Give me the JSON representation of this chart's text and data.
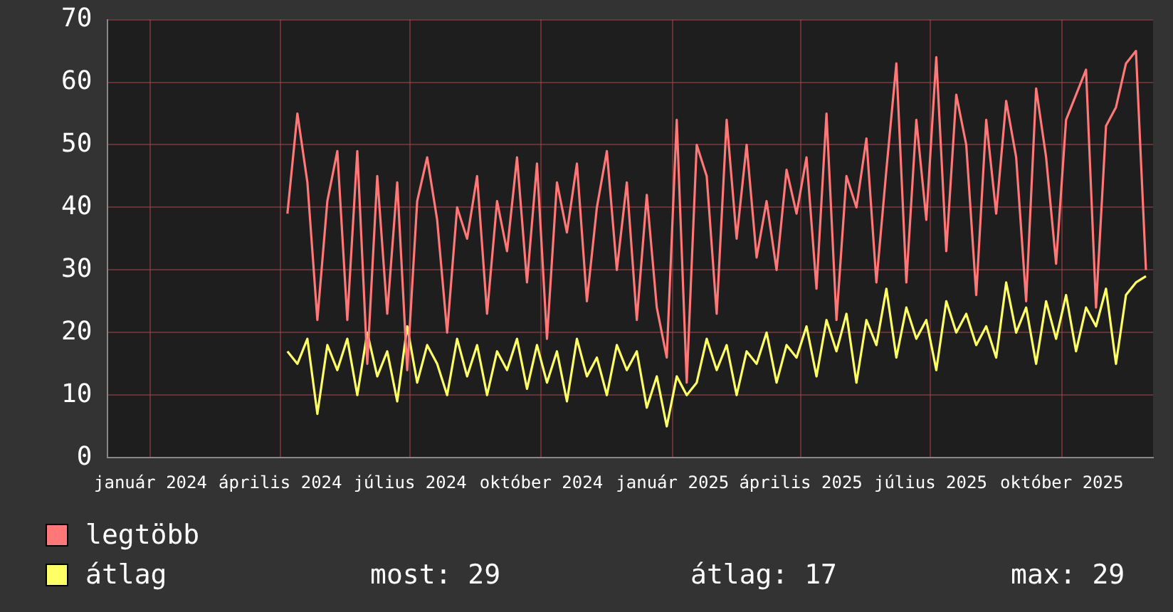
{
  "chart_data": {
    "type": "line",
    "x": [
      "2024-04-06",
      "2024-04-13",
      "2024-04-20",
      "2024-04-27",
      "2024-05-04",
      "2024-05-11",
      "2024-05-18",
      "2024-05-25",
      "2024-06-01",
      "2024-06-08",
      "2024-06-15",
      "2024-06-22",
      "2024-06-29",
      "2024-07-06",
      "2024-07-13",
      "2024-07-20",
      "2024-07-27",
      "2024-08-03",
      "2024-08-10",
      "2024-08-17",
      "2024-08-24",
      "2024-08-31",
      "2024-09-07",
      "2024-09-14",
      "2024-09-21",
      "2024-09-28",
      "2024-10-05",
      "2024-10-12",
      "2024-10-19",
      "2024-10-26",
      "2024-11-02",
      "2024-11-09",
      "2024-11-16",
      "2024-11-23",
      "2024-11-30",
      "2024-12-07",
      "2024-12-14",
      "2024-12-21",
      "2024-12-28",
      "2025-01-04",
      "2025-01-11",
      "2025-01-18",
      "2025-01-25",
      "2025-02-01",
      "2025-02-08",
      "2025-02-15",
      "2025-02-22",
      "2025-03-01",
      "2025-03-08",
      "2025-03-15",
      "2025-03-22",
      "2025-03-29",
      "2025-04-05",
      "2025-04-12",
      "2025-04-19",
      "2025-04-26",
      "2025-05-03",
      "2025-05-10",
      "2025-05-17",
      "2025-05-24",
      "2025-05-31",
      "2025-06-07",
      "2025-06-14",
      "2025-06-21",
      "2025-06-28",
      "2025-07-05",
      "2025-07-12",
      "2025-07-19",
      "2025-07-26",
      "2025-08-02",
      "2025-08-09",
      "2025-08-16",
      "2025-08-23",
      "2025-08-30",
      "2025-09-06",
      "2025-09-13",
      "2025-09-20",
      "2025-09-27",
      "2025-10-04",
      "2025-10-11",
      "2025-10-18",
      "2025-10-25",
      "2025-11-01",
      "2025-11-08",
      "2025-11-15",
      "2025-11-22",
      "2025-11-29"
    ],
    "series": [
      {
        "name": "legtöbb",
        "color": "#ff7777",
        "values": [
          39,
          55,
          44,
          22,
          41,
          49,
          22,
          49,
          15,
          45,
          23,
          44,
          14,
          41,
          48,
          38,
          20,
          40,
          35,
          45,
          23,
          41,
          33,
          48,
          28,
          47,
          19,
          44,
          36,
          47,
          25,
          40,
          49,
          30,
          44,
          22,
          42,
          24,
          16,
          54,
          12,
          50,
          45,
          23,
          54,
          35,
          50,
          32,
          41,
          30,
          46,
          39,
          48,
          27,
          55,
          22,
          45,
          40,
          51,
          28,
          46,
          63,
          28,
          54,
          38,
          64,
          33,
          58,
          50,
          26,
          54,
          39,
          57,
          48,
          25,
          59,
          48,
          31,
          54,
          58,
          62,
          24,
          53,
          56,
          63,
          65,
          30
        ]
      },
      {
        "name": "átlag",
        "color": "#ffff66",
        "values": [
          17,
          15,
          19,
          7,
          18,
          14,
          19,
          10,
          20,
          13,
          17,
          9,
          21,
          12,
          18,
          15,
          10,
          19,
          13,
          18,
          10,
          17,
          14,
          19,
          11,
          18,
          12,
          17,
          9,
          19,
          13,
          16,
          10,
          18,
          14,
          17,
          8,
          13,
          5,
          13,
          10,
          12,
          19,
          14,
          18,
          10,
          17,
          15,
          20,
          12,
          18,
          16,
          21,
          13,
          22,
          17,
          23,
          12,
          22,
          18,
          27,
          16,
          24,
          19,
          22,
          14,
          25,
          20,
          23,
          18,
          21,
          16,
          28,
          20,
          24,
          15,
          25,
          19,
          26,
          17,
          24,
          21,
          27,
          15,
          26,
          28,
          29
        ]
      }
    ],
    "xlim": [
      "2023-12-02",
      "2025-12-04"
    ],
    "xticks": [
      {
        "value": "2024-01-01",
        "label": "január 2024"
      },
      {
        "value": "2024-04-01",
        "label": "április 2024"
      },
      {
        "value": "2024-07-01",
        "label": "július 2024"
      },
      {
        "value": "2024-10-01",
        "label": "október 2024"
      },
      {
        "value": "2025-01-01",
        "label": "január 2025"
      },
      {
        "value": "2025-04-01",
        "label": "április 2025"
      },
      {
        "value": "2025-07-01",
        "label": "július 2025"
      },
      {
        "value": "2025-10-01",
        "label": "október 2025"
      }
    ],
    "ylim": [
      0,
      70
    ],
    "yticks": [
      0,
      10,
      20,
      30,
      40,
      50,
      60,
      70
    ],
    "grid": true,
    "legend": "bottom left",
    "marker": "none",
    "line_style": "solid",
    "annotations": [
      "most: 29",
      "átlag: 17",
      "max: 29"
    ]
  }
}
